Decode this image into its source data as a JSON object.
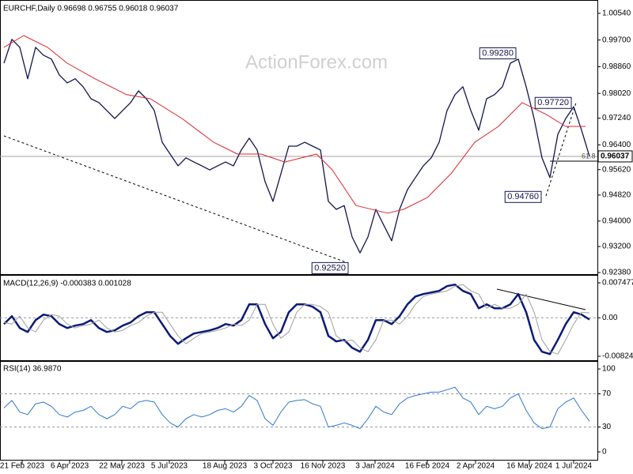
{
  "chart_data": [
    {
      "type": "line",
      "title": "EURCHF,Daily  0.96698 0.96755 0.96018 0.96037",
      "watermark": "ActionForex.com",
      "xlim": [
        -0.5,
        75
      ],
      "ylim": [
        0.9238,
        1.0086
      ],
      "yticks": [
        {
          "value": 1.0054,
          "label": "1.00540"
        },
        {
          "value": 0.997,
          "label": "0.99700"
        },
        {
          "value": 0.9886,
          "label": "0.98860"
        },
        {
          "value": 0.9802,
          "label": "0.98020"
        },
        {
          "value": 0.9724,
          "label": "0.97240"
        },
        {
          "value": 0.964,
          "label": "0.96400"
        },
        {
          "value": 0.9562,
          "label": "0.95620"
        },
        {
          "value": 0.9482,
          "label": "0.94820"
        },
        {
          "value": 0.94,
          "label": "0.94000"
        },
        {
          "value": 0.932,
          "label": "0.93200"
        },
        {
          "value": 0.9238,
          "label": "0.92380"
        }
      ],
      "series": [
        {
          "color": "#14144e",
          "values": [
            0.9897,
            0.9972,
            0.9947,
            0.9848,
            0.9947,
            0.9922,
            0.991,
            0.986,
            0.9835,
            0.9848,
            0.9823,
            0.9785,
            0.9773,
            0.9748,
            0.9723,
            0.9748,
            0.9773,
            0.981,
            0.9785,
            0.9748,
            0.9648,
            0.9611,
            0.9574,
            0.9599,
            0.9586,
            0.9574,
            0.9561,
            0.9574,
            0.9586,
            0.9574,
            0.9624,
            0.9661,
            0.9624,
            0.9524,
            0.9462,
            0.9549,
            0.9636,
            0.9636,
            0.9648,
            0.9636,
            0.9624,
            0.9462,
            0.9437,
            0.9449,
            0.935,
            0.93,
            0.935,
            0.9437,
            0.9387,
            0.9338,
            0.9437,
            0.9499,
            0.9537,
            0.9574,
            0.9599,
            0.9648,
            0.9748,
            0.9798,
            0.9823,
            0.9748,
            0.9686,
            0.9785,
            0.9798,
            0.9823,
            0.9897,
            0.991,
            0.9823,
            0.9723,
            0.9599,
            0.9537,
            0.9673,
            0.9723,
            0.976,
            0.9686,
            0.9604
          ]
        },
        {
          "color": "#e0262c",
          "x": [
            0,
            2.5,
            5.5,
            8,
            11.5,
            15.5,
            18.5,
            22.5,
            26.5,
            29.5,
            32.5,
            35.5,
            39.5,
            41.5,
            44.5,
            48.5,
            50.5,
            53.5,
            56.5,
            59.5,
            62.5,
            65.5,
            68.5,
            71,
            73.5
          ],
          "values": [
            0.9947,
            0.9984,
            0.9947,
            0.9897,
            0.9848,
            0.9798,
            0.9785,
            0.9723,
            0.9648,
            0.9611,
            0.9611,
            0.9586,
            0.9611,
            0.9561,
            0.9449,
            0.9425,
            0.9437,
            0.9474,
            0.9549,
            0.9648,
            0.9698,
            0.9773,
            0.9736,
            0.9698,
            0.9698
          ]
        }
      ],
      "annotations": [
        {
          "x": 64.7,
          "value": 0.9928,
          "label": "0.99280"
        },
        {
          "x": 71.7,
          "value": 0.9772,
          "label": "0.97720"
        },
        {
          "x": 67.9,
          "value": 0.9476,
          "label": "0.94760"
        },
        {
          "x": 43.5,
          "value": 0.9252,
          "label": "0.92520"
        }
      ],
      "last_price": {
        "value": 0.96037,
        "label": "0.96037"
      },
      "fib_label": "61.8"
    },
    {
      "type": "line",
      "title": "MACD(12,26,9) -0.000383 0.001028",
      "xlim": [
        -0.5,
        75
      ],
      "ylim": [
        -0.00892,
        0.00849
      ],
      "yticks": [
        0.007477,
        {
          "value": 0,
          "label": "0.00"
        },
        -0.00824
      ],
      "hlines": [
        0
      ],
      "series": [
        {
          "color": "#0a1a78",
          "values": [
            -0.00135,
            0.00034,
            -0.0022,
            -0.00304,
            -0.00051,
            0.00068,
            0.00034,
            -0.00135,
            -0.0022,
            -0.00169,
            -0.00135,
            -0.00051,
            -0.0022,
            -0.00304,
            -0.0027,
            -0.00169,
            -0.00101,
            0.00034,
            0.00118,
            0.00118,
            -0.00135,
            -0.00389,
            -0.00558,
            -0.00439,
            -0.00338,
            -0.00304,
            -0.0027,
            -0.0022,
            -0.00135,
            -0.00169,
            -0.00051,
            0.00287,
            0.00287,
            -0.00135,
            -0.00439,
            -0.00304,
            0.00118,
            0.00287,
            0.00287,
            0.00237,
            0.00118,
            -0.00389,
            -0.00507,
            -0.00473,
            -0.00642,
            -0.00727,
            -0.00473,
            -0.00051,
            -0.00051,
            -0.00135,
            0.00034,
            0.00287,
            0.00456,
            0.00507,
            0.00541,
            0.00575,
            0.00676,
            0.0071,
            0.00575,
            0.00507,
            0.00203,
            0.00287,
            0.00203,
            0.00203,
            0.00287,
            0.00507,
            0.00118,
            -0.00473,
            -0.00727,
            -0.00777,
            -0.00473,
            -0.00135,
            0.00118,
            0.00068,
            -0.00038
          ]
        },
        {
          "color": "#a0a0a0",
          "values": [
            -0.001,
            -0.00135,
            0.00034,
            -0.0022,
            -0.00304,
            -0.00051,
            0.00068,
            0.00034,
            -0.00135,
            -0.0022,
            -0.00169,
            -0.00135,
            -0.00051,
            -0.0022,
            -0.00304,
            -0.0027,
            -0.00169,
            -0.00101,
            0.00034,
            0.00118,
            0.00118,
            -0.00135,
            -0.00389,
            -0.00558,
            -0.00439,
            -0.00338,
            -0.00304,
            -0.0027,
            -0.0022,
            -0.00135,
            -0.00169,
            -0.00051,
            0.00287,
            0.00287,
            -0.00135,
            -0.00439,
            -0.00304,
            0.00118,
            0.00287,
            0.00287,
            0.00237,
            0.00118,
            -0.00389,
            -0.00507,
            -0.00473,
            -0.00642,
            -0.00727,
            -0.00473,
            -0.00051,
            -0.00051,
            -0.00135,
            0.00034,
            0.00287,
            0.00456,
            0.00507,
            0.00541,
            0.00575,
            0.00676,
            0.0071,
            0.00575,
            0.00507,
            0.00203,
            0.00287,
            0.00203,
            0.00203,
            0.00287,
            0.00507,
            0.00118,
            -0.00473,
            -0.00727,
            -0.00777,
            -0.00473,
            -0.00135,
            0.00118,
            0.00103
          ]
        }
      ]
    },
    {
      "type": "line",
      "title": "RSI(14) 36.9870",
      "xlim": [
        -0.5,
        75
      ],
      "ylim": [
        -7.6,
        106.7
      ],
      "yticks": [
        100,
        70,
        30,
        0
      ],
      "hlines": [
        70,
        30
      ],
      "xticks": [
        {
          "value": 2.3,
          "label": "21 Feb 2023"
        },
        {
          "value": 8.3,
          "label": "6 Apr 2023"
        },
        {
          "value": 14.9,
          "label": "22 May 2023"
        },
        {
          "value": 20.9,
          "label": "5 Jul 2023"
        },
        {
          "value": 27.9,
          "label": "18 Aug 2023"
        },
        {
          "value": 34,
          "label": "3 Oct 2023"
        },
        {
          "value": 40.3,
          "label": "16 Nov 2023"
        },
        {
          "value": 46.9,
          "label": "3 Jan 2024"
        },
        {
          "value": 53.5,
          "label": "16 Feb 2024"
        },
        {
          "value": 59.6,
          "label": "2 Apr 2024"
        },
        {
          "value": 66.4,
          "label": "16 May 2024"
        },
        {
          "value": 72,
          "label": "1 Jul 2024"
        }
      ],
      "series": [
        {
          "color": "#2f78d0",
          "values": [
            53,
            62,
            48,
            45,
            58,
            60,
            55,
            45,
            42,
            48,
            50,
            55,
            45,
            40,
            45,
            55,
            52,
            60,
            62,
            60,
            45,
            35,
            30,
            40,
            45,
            42,
            45,
            50,
            52,
            48,
            55,
            68,
            62,
            40,
            32,
            48,
            60,
            62,
            63,
            58,
            55,
            30,
            32,
            35,
            32,
            28,
            40,
            55,
            48,
            45,
            58,
            65,
            68,
            70,
            72,
            72,
            75,
            78,
            65,
            60,
            45,
            55,
            52,
            55,
            65,
            70,
            50,
            35,
            28,
            30,
            52,
            60,
            65,
            50,
            37
          ]
        }
      ]
    }
  ]
}
